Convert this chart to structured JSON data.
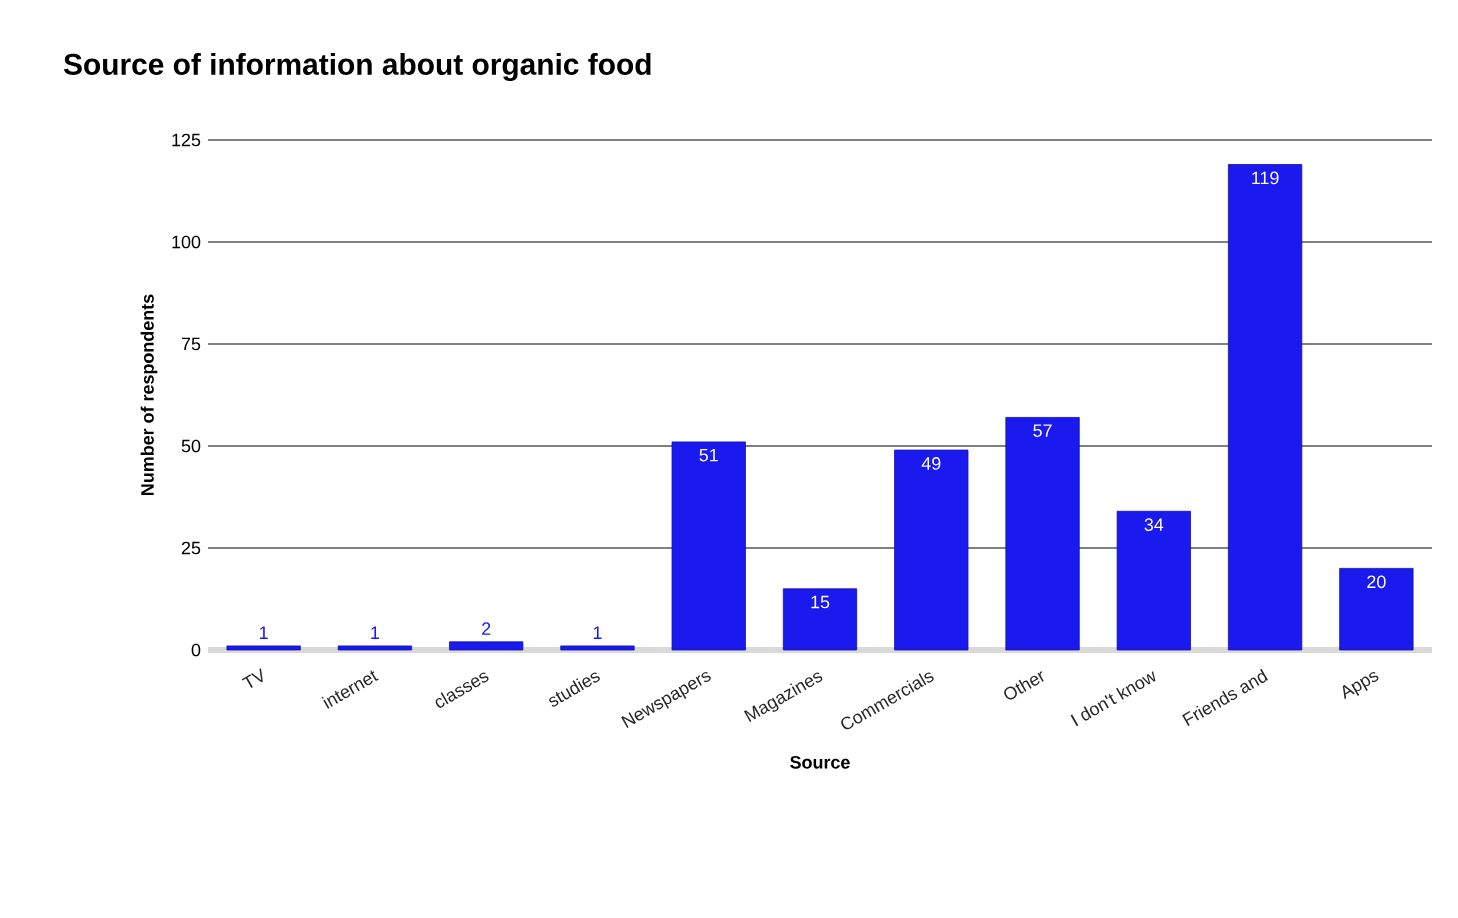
{
  "chart_data": {
    "type": "bar",
    "title": "Source of information about organic food",
    "xlabel": "Source",
    "ylabel": "Number of respondents",
    "categories": [
      "TV",
      "internet",
      "classes",
      "studies",
      "Newspapers",
      "Magazines",
      "Commercials",
      "Other",
      "I don't know",
      "Friends and",
      "Apps"
    ],
    "values": [
      1,
      1,
      2,
      1,
      51,
      15,
      49,
      57,
      34,
      119,
      20
    ],
    "color": "#1a1aee",
    "ylim": [
      0,
      125
    ],
    "yticks": [
      0,
      25,
      50,
      75,
      100,
      125
    ],
    "grid": "y",
    "data_labels": true
  }
}
